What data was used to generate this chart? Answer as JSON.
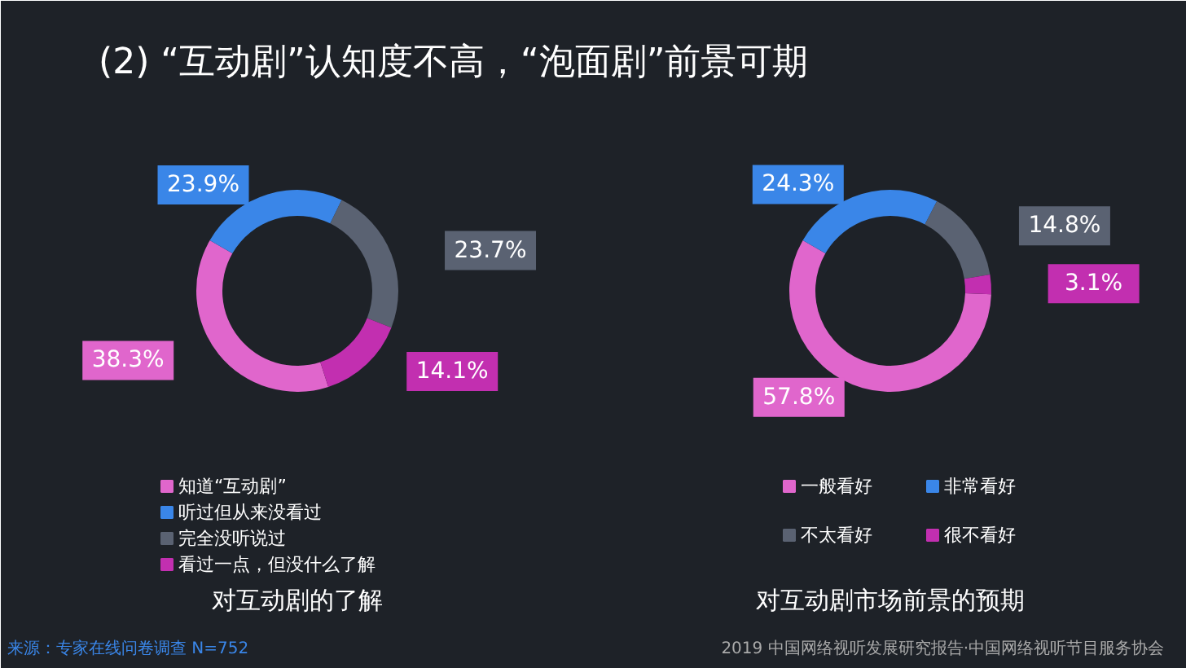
{
  "chart_data": [
    {
      "type": "donut",
      "title": "对互动剧的了解",
      "categories": [
        "知道“互动剧”",
        "听过但从来没看过",
        "完全没听说过",
        "看过一点，但没什么了解"
      ],
      "values": [
        38.3,
        23.9,
        23.7,
        14.1
      ],
      "colors": [
        "#e066cc",
        "#3a86e8",
        "#5a6272",
        "#c22fb0"
      ],
      "value_labels": [
        "38.3%",
        "23.9%",
        "23.7%",
        "14.1%"
      ],
      "legend": "bottom",
      "annotations": [
        "(2) “互动剧”认知度不高，“泡面剧”前景可期",
        "来源：专家在线问卷调查 N=752"
      ]
    },
    {
      "type": "donut",
      "title": "对互动剧市场前景的预期",
      "categories": [
        "一般看好",
        "非常看好",
        "不太看好",
        "很不看好"
      ],
      "values": [
        57.8,
        24.3,
        14.8,
        3.1
      ],
      "colors": [
        "#e066cc",
        "#3a86e8",
        "#5a6272",
        "#c22fb0"
      ],
      "value_labels": [
        "57.8%",
        "24.3%",
        "14.8%",
        "3.1%"
      ],
      "legend": "bottom",
      "annotations": [
        "2019 中国网络视听发展研究报告·中国网络视听节目服务协会"
      ]
    }
  ]
}
